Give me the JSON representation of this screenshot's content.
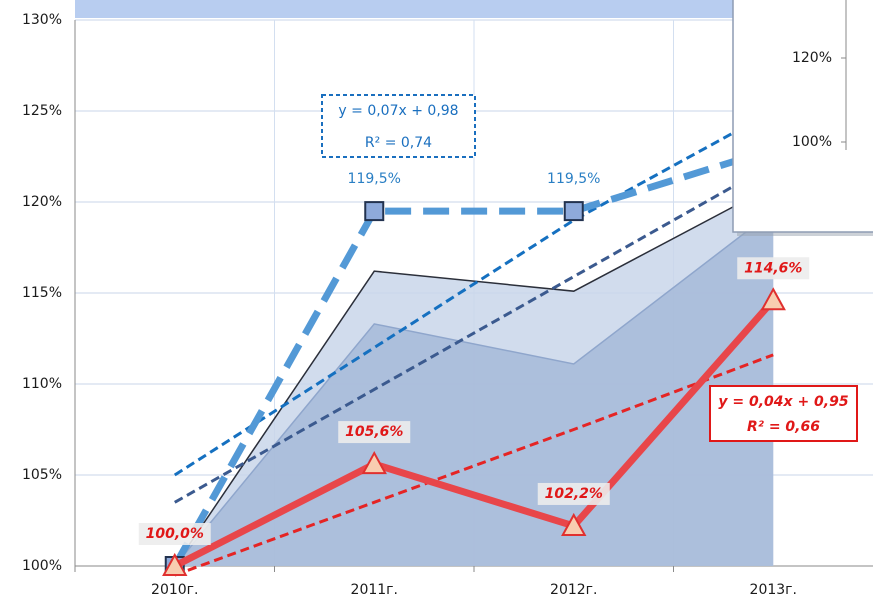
{
  "chart_data": [
    {
      "type": "line",
      "categories": [
        "2010г.",
        "2011г.",
        "2012г.",
        "2013г."
      ],
      "ylim": [
        100,
        130
      ],
      "yticks": [
        {
          "value": 100,
          "label": "100%"
        },
        {
          "value": 105,
          "label": "105%"
        },
        {
          "value": 110,
          "label": "110%"
        },
        {
          "value": 115,
          "label": "115%"
        },
        {
          "value": 120,
          "label": "120%"
        },
        {
          "value": 125,
          "label": "125%"
        },
        {
          "value": 130,
          "label": "130%"
        }
      ],
      "grid": true,
      "series": [
        {
          "type": "area",
          "color": "#c9d6ea",
          "stroke": "#2b2f3a",
          "values": [
            100,
            116.2,
            115.1,
            120.9
          ]
        },
        {
          "type": "area",
          "color": "#a6bad8",
          "stroke": "#8fa6cc",
          "values": [
            100,
            113.3,
            111.1,
            119.5
          ]
        },
        {
          "type": "trend",
          "color": "#1570c0",
          "values": [
            105,
            112,
            119,
            125
          ]
        },
        {
          "type": "trend",
          "color": "#3b5a8f",
          "values": [
            103.5,
            109.7,
            115.9,
            122.1
          ]
        },
        {
          "type": "trend",
          "color": "#e52424",
          "values": [
            99.5,
            103.5,
            107.5,
            111.6
          ]
        },
        {
          "type": "line",
          "color": "#5399d6",
          "marker": "square",
          "marker_fill": "#8eaadb",
          "marker_stroke": "#22324f",
          "label_color": "#2a7fc4",
          "values": [
            100,
            119.5,
            119.5,
            122.9
          ],
          "value_labels": [
            null,
            "119,5%",
            "119,5%",
            null
          ]
        },
        {
          "type": "line",
          "color": "#e8464a",
          "marker": "triangle",
          "marker_fill": "#f8cdb0",
          "marker_stroke": "#e0302f",
          "label_color": "#e01818",
          "values": [
            100.0,
            105.6,
            102.2,
            114.6
          ],
          "value_labels": [
            "100,0%",
            "105,6%",
            "102,2%",
            "114,6%"
          ]
        }
      ],
      "annotations": [
        {
          "lines": [
            "y = 0,07x + 0,98",
            "R² = 0,74"
          ],
          "color": "#1a6fbf",
          "border": "dashed"
        },
        {
          "lines": [
            "y = 0,04x + 0,95",
            "R² = 0,66"
          ],
          "color": "#e01818",
          "border": "solid"
        }
      ]
    },
    {
      "type": "line",
      "ylim": [
        100,
        120
      ],
      "yticks": [
        {
          "value": 100,
          "label": "100%"
        },
        {
          "value": 120,
          "label": "120%"
        }
      ]
    }
  ]
}
